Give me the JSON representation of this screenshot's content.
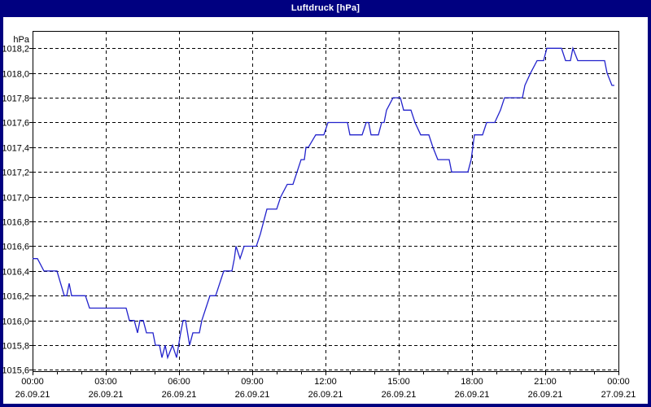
{
  "window": {
    "title": "Luftdruck [hPa]"
  },
  "colors": {
    "frame": "#000080",
    "title_text": "#ffffff",
    "background": "#ffffff",
    "axis": "#000000",
    "grid": "#000000",
    "line": "#2222cc"
  },
  "chart_data": {
    "type": "line",
    "title": "Luftdruck [hPa]",
    "ylabel": "hPa",
    "xlabel": "",
    "grid": true,
    "legend": "none",
    "ylim": [
      1015.59,
      1018.34
    ],
    "x_range_minutes": [
      0,
      1440
    ],
    "x_major_tick_hours": 3,
    "x_minor_tick_hours": 1,
    "y_ticks": [
      {
        "value": 1018.2,
        "label": "1018,2"
      },
      {
        "value": 1018.0,
        "label": "1018,0"
      },
      {
        "value": 1017.8,
        "label": "1017,8"
      },
      {
        "value": 1017.6,
        "label": "1017,6"
      },
      {
        "value": 1017.4,
        "label": "1017,4"
      },
      {
        "value": 1017.2,
        "label": "1017,2"
      },
      {
        "value": 1017.0,
        "label": "1017,0"
      },
      {
        "value": 1016.8,
        "label": "1016,8"
      },
      {
        "value": 1016.6,
        "label": "1016,6"
      },
      {
        "value": 1016.4,
        "label": "1016,4"
      },
      {
        "value": 1016.2,
        "label": "1016,2"
      },
      {
        "value": 1016.0,
        "label": "1016,0"
      },
      {
        "value": 1015.8,
        "label": "1015,8"
      },
      {
        "value": 1015.6,
        "label": "1015,6"
      }
    ],
    "x_ticks": [
      {
        "hour": 0,
        "time": "00:00",
        "date": "26.09.21"
      },
      {
        "hour": 3,
        "time": "03:00",
        "date": "26.09.21"
      },
      {
        "hour": 6,
        "time": "06:00",
        "date": "26.09.21"
      },
      {
        "hour": 9,
        "time": "09:00",
        "date": "26.09.21"
      },
      {
        "hour": 12,
        "time": "12:00",
        "date": "26.09.21"
      },
      {
        "hour": 15,
        "time": "15:00",
        "date": "26.09.21"
      },
      {
        "hour": 18,
        "time": "18:00",
        "date": "26.09.21"
      },
      {
        "hour": 21,
        "time": "21:00",
        "date": "26.09.21"
      },
      {
        "hour": 24,
        "time": "00:00",
        "date": "27.09.21"
      }
    ],
    "series": [
      {
        "name": "Luftdruck",
        "unit": "hPa",
        "points_format": "[minutes_since_00:00, hPa]",
        "points": [
          [
            0,
            1016.5
          ],
          [
            12,
            1016.5
          ],
          [
            28,
            1016.4
          ],
          [
            60,
            1016.4
          ],
          [
            78,
            1016.2
          ],
          [
            84,
            1016.2
          ],
          [
            90,
            1016.3
          ],
          [
            96,
            1016.2
          ],
          [
            130,
            1016.2
          ],
          [
            140,
            1016.1
          ],
          [
            230,
            1016.1
          ],
          [
            238,
            1016.0
          ],
          [
            250,
            1016.0
          ],
          [
            258,
            1015.9
          ],
          [
            264,
            1016.0
          ],
          [
            272,
            1016.0
          ],
          [
            280,
            1015.9
          ],
          [
            296,
            1015.9
          ],
          [
            302,
            1015.8
          ],
          [
            312,
            1015.8
          ],
          [
            318,
            1015.7
          ],
          [
            326,
            1015.8
          ],
          [
            332,
            1015.7
          ],
          [
            344,
            1015.8
          ],
          [
            354,
            1015.7
          ],
          [
            364,
            1015.9
          ],
          [
            370,
            1016.0
          ],
          [
            376,
            1016.0
          ],
          [
            386,
            1015.8
          ],
          [
            394,
            1015.9
          ],
          [
            410,
            1015.9
          ],
          [
            416,
            1016.0
          ],
          [
            426,
            1016.1
          ],
          [
            436,
            1016.2
          ],
          [
            450,
            1016.2
          ],
          [
            460,
            1016.3
          ],
          [
            470,
            1016.4
          ],
          [
            490,
            1016.4
          ],
          [
            496,
            1016.5
          ],
          [
            500,
            1016.6
          ],
          [
            510,
            1016.5
          ],
          [
            520,
            1016.6
          ],
          [
            550,
            1016.6
          ],
          [
            560,
            1016.7
          ],
          [
            568,
            1016.8
          ],
          [
            576,
            1016.9
          ],
          [
            600,
            1016.9
          ],
          [
            610,
            1017.0
          ],
          [
            626,
            1017.1
          ],
          [
            640,
            1017.1
          ],
          [
            650,
            1017.2
          ],
          [
            660,
            1017.3
          ],
          [
            668,
            1017.3
          ],
          [
            672,
            1017.4
          ],
          [
            678,
            1017.4
          ],
          [
            696,
            1017.5
          ],
          [
            716,
            1017.5
          ],
          [
            726,
            1017.6
          ],
          [
            774,
            1017.6
          ],
          [
            780,
            1017.5
          ],
          [
            810,
            1017.5
          ],
          [
            820,
            1017.6
          ],
          [
            826,
            1017.6
          ],
          [
            832,
            1017.5
          ],
          [
            850,
            1017.5
          ],
          [
            858,
            1017.6
          ],
          [
            864,
            1017.6
          ],
          [
            870,
            1017.7
          ],
          [
            886,
            1017.8
          ],
          [
            904,
            1017.8
          ],
          [
            912,
            1017.7
          ],
          [
            930,
            1017.7
          ],
          [
            940,
            1017.6
          ],
          [
            954,
            1017.5
          ],
          [
            974,
            1017.5
          ],
          [
            984,
            1017.4
          ],
          [
            996,
            1017.3
          ],
          [
            1024,
            1017.3
          ],
          [
            1030,
            1017.2
          ],
          [
            1070,
            1017.2
          ],
          [
            1078,
            1017.3
          ],
          [
            1082,
            1017.4
          ],
          [
            1086,
            1017.5
          ],
          [
            1106,
            1017.5
          ],
          [
            1116,
            1017.6
          ],
          [
            1136,
            1017.6
          ],
          [
            1150,
            1017.7
          ],
          [
            1160,
            1017.8
          ],
          [
            1204,
            1017.8
          ],
          [
            1210,
            1017.9
          ],
          [
            1224,
            1018.0
          ],
          [
            1240,
            1018.1
          ],
          [
            1256,
            1018.1
          ],
          [
            1264,
            1018.2
          ],
          [
            1300,
            1018.2
          ],
          [
            1310,
            1018.1
          ],
          [
            1322,
            1018.1
          ],
          [
            1328,
            1018.2
          ],
          [
            1340,
            1018.1
          ],
          [
            1406,
            1018.1
          ],
          [
            1412,
            1018.0
          ],
          [
            1424,
            1017.9
          ],
          [
            1430,
            1017.9
          ]
        ]
      }
    ]
  }
}
